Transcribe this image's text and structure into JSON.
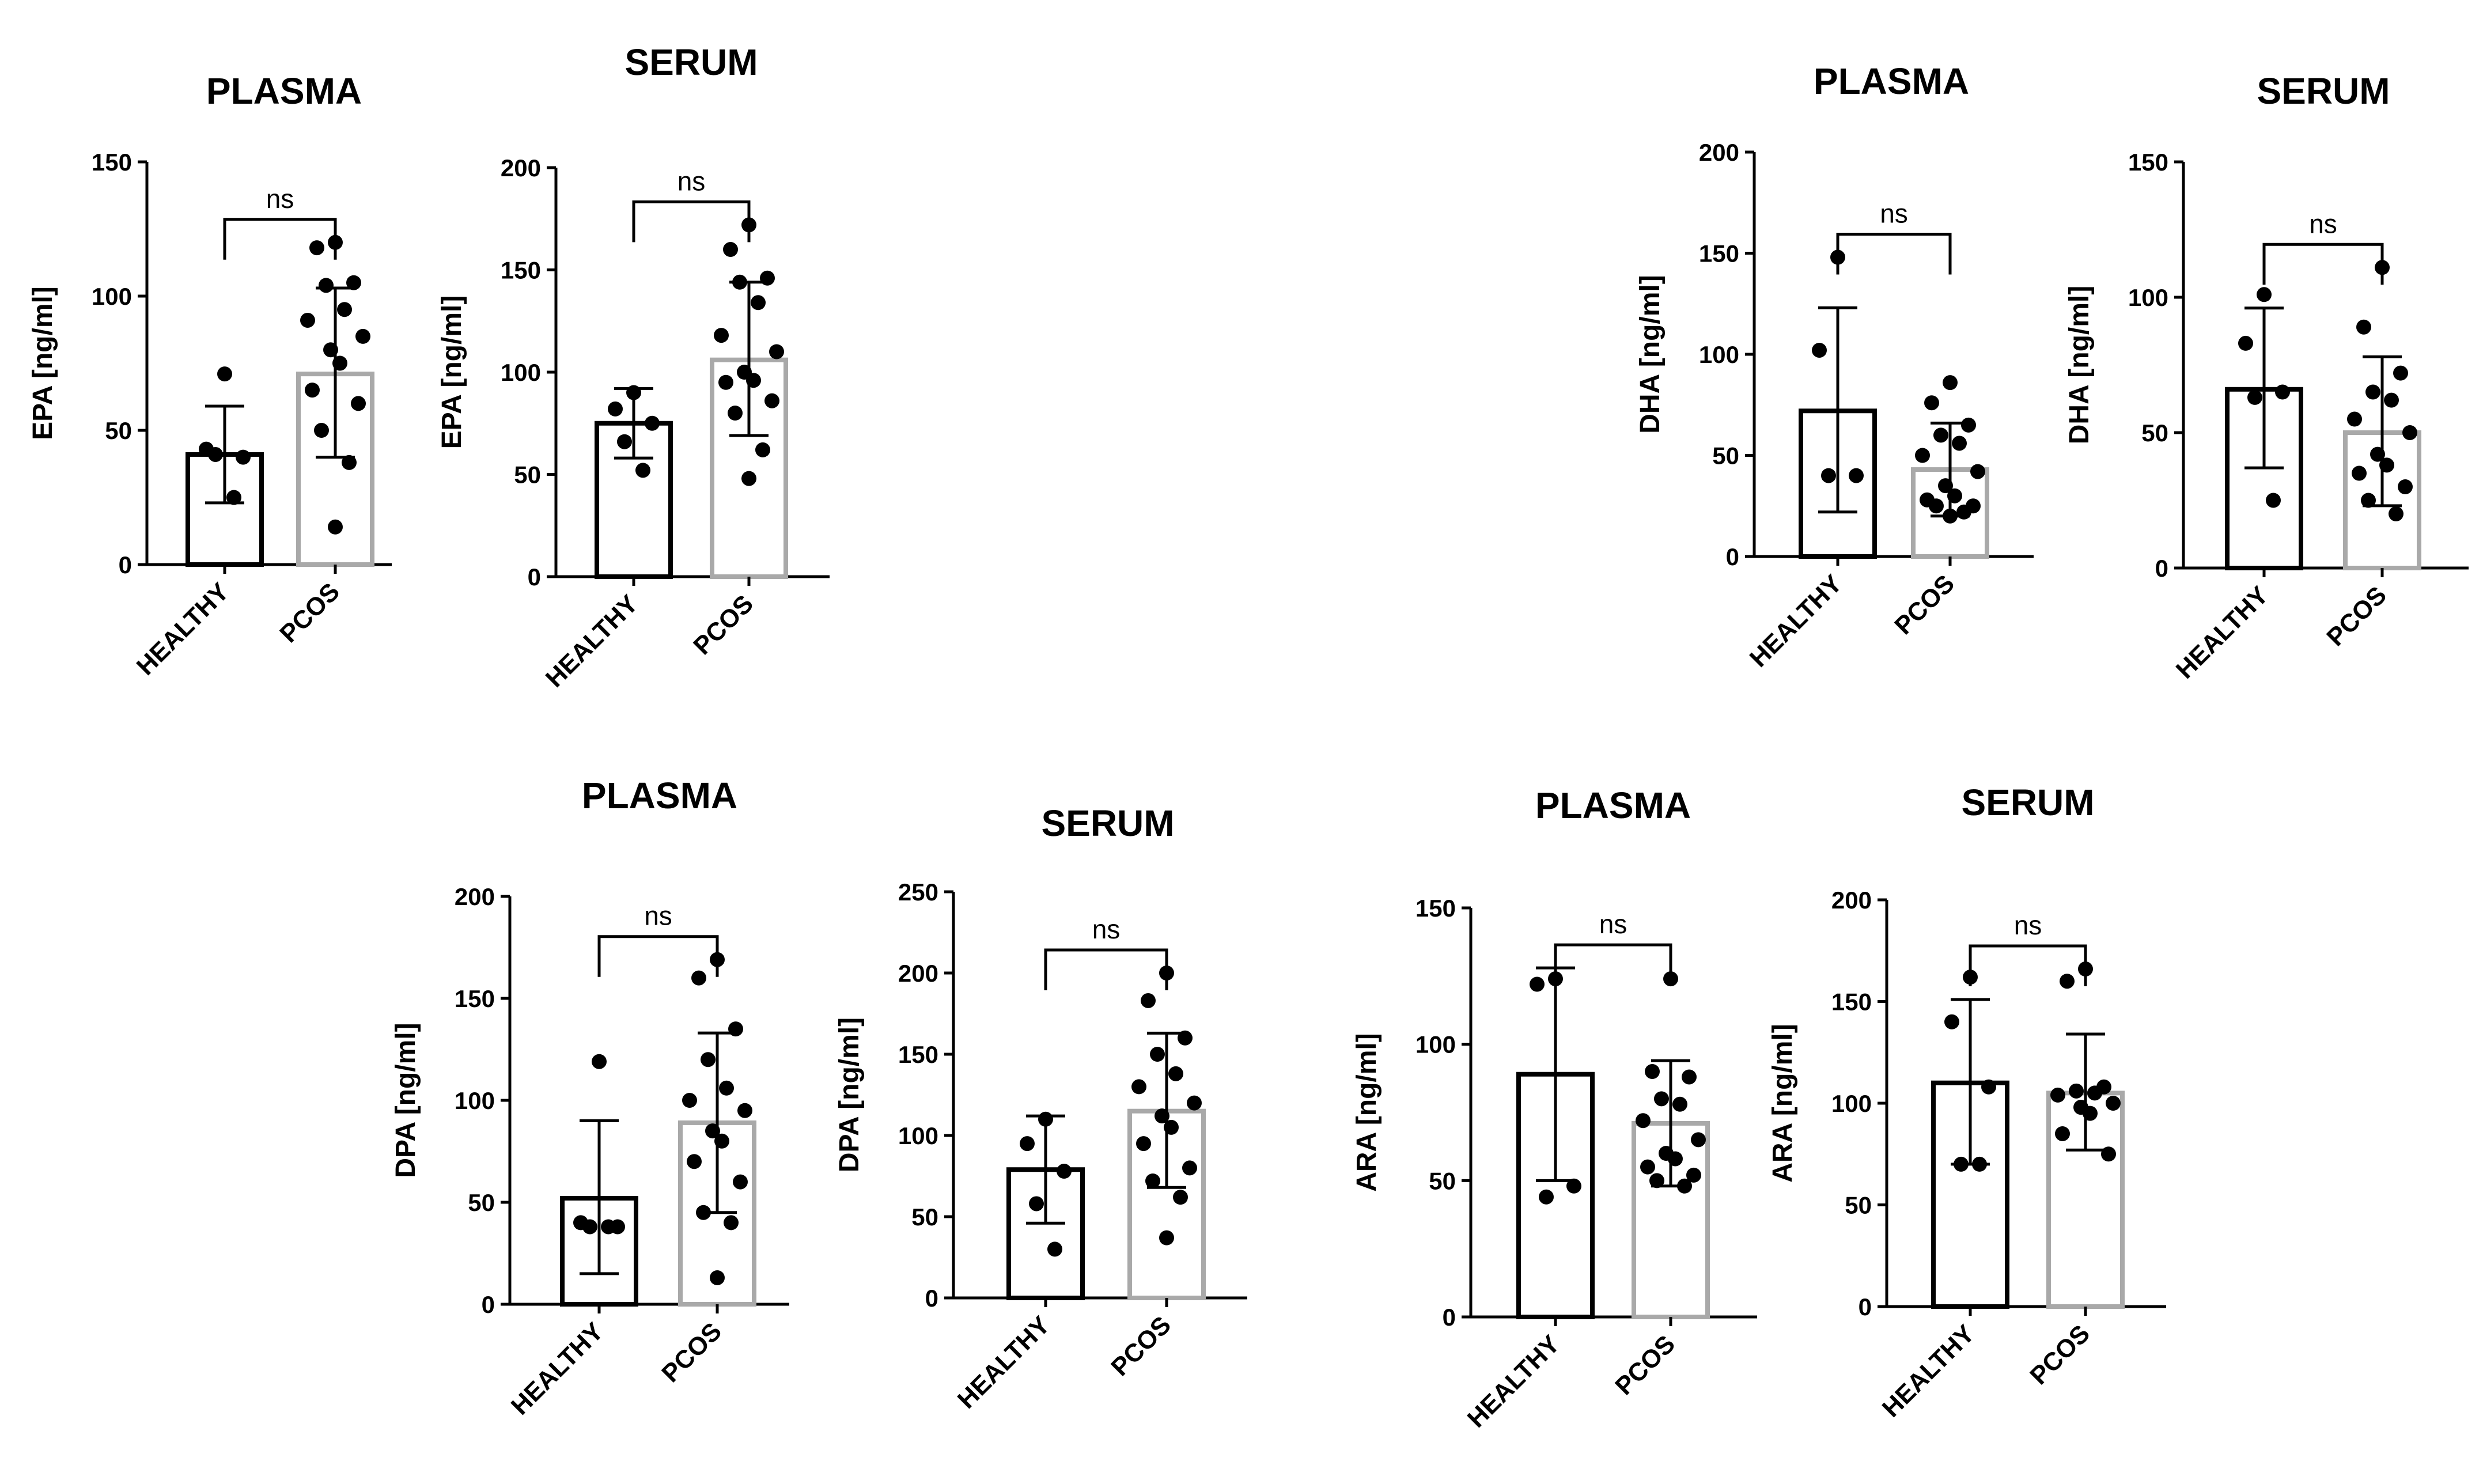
{
  "chart_data": [
    {
      "type": "bar",
      "title": "PLASMA",
      "ylabel": "EPA [ng/ml]",
      "categories": [
        "HEALTHY",
        "PCOS"
      ],
      "ylim": [
        0,
        150
      ],
      "yticks": [
        0,
        50,
        100,
        150
      ],
      "series": [
        {
          "category": "HEALTHY",
          "mean": 41,
          "sd_low": 23,
          "sd_high": 59,
          "points": [
            71,
            43,
            40,
            41,
            25
          ]
        },
        {
          "category": "PCOS",
          "mean": 71,
          "sd_low": 40,
          "sd_high": 103,
          "points": [
            120,
            118,
            105,
            104,
            95,
            91,
            85,
            80,
            75,
            65,
            60,
            50,
            38,
            14
          ]
        }
      ],
      "significance": "ns"
    },
    {
      "type": "bar",
      "title": "SERUM",
      "ylabel": "EPA [ng/ml]",
      "categories": [
        "HEALTHY",
        "PCOS"
      ],
      "ylim": [
        0,
        200
      ],
      "yticks": [
        0,
        50,
        100,
        150,
        200
      ],
      "series": [
        {
          "category": "HEALTHY",
          "mean": 75,
          "sd_low": 58,
          "sd_high": 92,
          "points": [
            90,
            82,
            75,
            66,
            52
          ]
        },
        {
          "category": "PCOS",
          "mean": 106,
          "sd_low": 69,
          "sd_high": 144,
          "points": [
            172,
            160,
            146,
            144,
            134,
            118,
            110,
            100,
            96,
            95,
            86,
            80,
            62,
            48
          ]
        }
      ],
      "significance": "ns"
    },
    {
      "type": "bar",
      "title": "PLASMA",
      "ylabel": "DHA [ng/ml]",
      "categories": [
        "HEALTHY",
        "PCOS"
      ],
      "ylim": [
        0,
        200
      ],
      "yticks": [
        0,
        50,
        100,
        150,
        200
      ],
      "series": [
        {
          "category": "HEALTHY",
          "mean": 72,
          "sd_low": 22,
          "sd_high": 123,
          "points": [
            148,
            102,
            40,
            40
          ]
        },
        {
          "category": "PCOS",
          "mean": 43,
          "sd_low": 20,
          "sd_high": 66,
          "points": [
            86,
            76,
            65,
            60,
            56,
            50,
            42,
            35,
            30,
            28,
            25,
            25,
            22,
            20
          ]
        }
      ],
      "significance": "ns"
    },
    {
      "type": "bar",
      "title": "SERUM",
      "ylabel": "DHA [ng/ml]",
      "categories": [
        "HEALTHY",
        "PCOS"
      ],
      "ylim": [
        0,
        150
      ],
      "yticks": [
        0,
        50,
        100,
        150
      ],
      "series": [
        {
          "category": "HEALTHY",
          "mean": 66,
          "sd_low": 37,
          "sd_high": 96,
          "points": [
            101,
            83,
            65,
            63,
            25
          ]
        },
        {
          "category": "PCOS",
          "mean": 50,
          "sd_low": 23,
          "sd_high": 78,
          "points": [
            111,
            89,
            72,
            65,
            62,
            55,
            50,
            42,
            38,
            35,
            30,
            25,
            20
          ]
        }
      ],
      "significance": "ns"
    },
    {
      "type": "bar",
      "title": "PLASMA",
      "ylabel": "DPA [ng/ml]",
      "categories": [
        "HEALTHY",
        "PCOS"
      ],
      "ylim": [
        0,
        200
      ],
      "yticks": [
        0,
        50,
        100,
        150,
        200
      ],
      "series": [
        {
          "category": "HEALTHY",
          "mean": 52,
          "sd_low": 15,
          "sd_high": 90,
          "points": [
            119,
            40,
            38,
            38,
            38
          ]
        },
        {
          "category": "PCOS",
          "mean": 89,
          "sd_low": 45,
          "sd_high": 133,
          "points": [
            169,
            160,
            135,
            120,
            106,
            100,
            95,
            85,
            80,
            70,
            60,
            45,
            40,
            13
          ]
        }
      ],
      "significance": "ns"
    },
    {
      "type": "bar",
      "title": "SERUM",
      "ylabel": "DPA [ng/ml]",
      "categories": [
        "HEALTHY",
        "PCOS"
      ],
      "ylim": [
        0,
        250
      ],
      "yticks": [
        0,
        50,
        100,
        150,
        200,
        250
      ],
      "series": [
        {
          "category": "HEALTHY",
          "mean": 79,
          "sd_low": 46,
          "sd_high": 112,
          "points": [
            110,
            95,
            78,
            58,
            30
          ]
        },
        {
          "category": "PCOS",
          "mean": 115,
          "sd_low": 68,
          "sd_high": 163,
          "points": [
            200,
            183,
            160,
            150,
            138,
            130,
            120,
            112,
            105,
            95,
            80,
            72,
            62,
            37
          ]
        }
      ],
      "significance": "ns"
    },
    {
      "type": "bar",
      "title": "PLASMA",
      "ylabel": "ARA [ng/ml]",
      "categories": [
        "HEALTHY",
        "PCOS"
      ],
      "ylim": [
        0,
        150
      ],
      "yticks": [
        0,
        50,
        100,
        150
      ],
      "series": [
        {
          "category": "HEALTHY",
          "mean": 89,
          "sd_low": 50,
          "sd_high": 128,
          "points": [
            124,
            122,
            48,
            44
          ]
        },
        {
          "category": "PCOS",
          "mean": 71,
          "sd_low": 48,
          "sd_high": 94,
          "points": [
            124,
            90,
            88,
            80,
            78,
            72,
            65,
            60,
            58,
            55,
            52,
            50,
            48
          ]
        }
      ],
      "significance": "ns"
    },
    {
      "type": "bar",
      "title": "SERUM",
      "ylabel": "ARA [ng/ml]",
      "categories": [
        "HEALTHY",
        "PCOS"
      ],
      "ylim": [
        0,
        200
      ],
      "yticks": [
        0,
        50,
        100,
        150,
        200
      ],
      "series": [
        {
          "category": "HEALTHY",
          "mean": 110,
          "sd_low": 70,
          "sd_high": 151,
          "points": [
            162,
            140,
            108,
            70,
            70
          ]
        },
        {
          "category": "PCOS",
          "mean": 105,
          "sd_low": 77,
          "sd_high": 134,
          "points": [
            166,
            160,
            108,
            106,
            105,
            104,
            100,
            98,
            95,
            85,
            75
          ]
        }
      ],
      "significance": "ns"
    }
  ]
}
